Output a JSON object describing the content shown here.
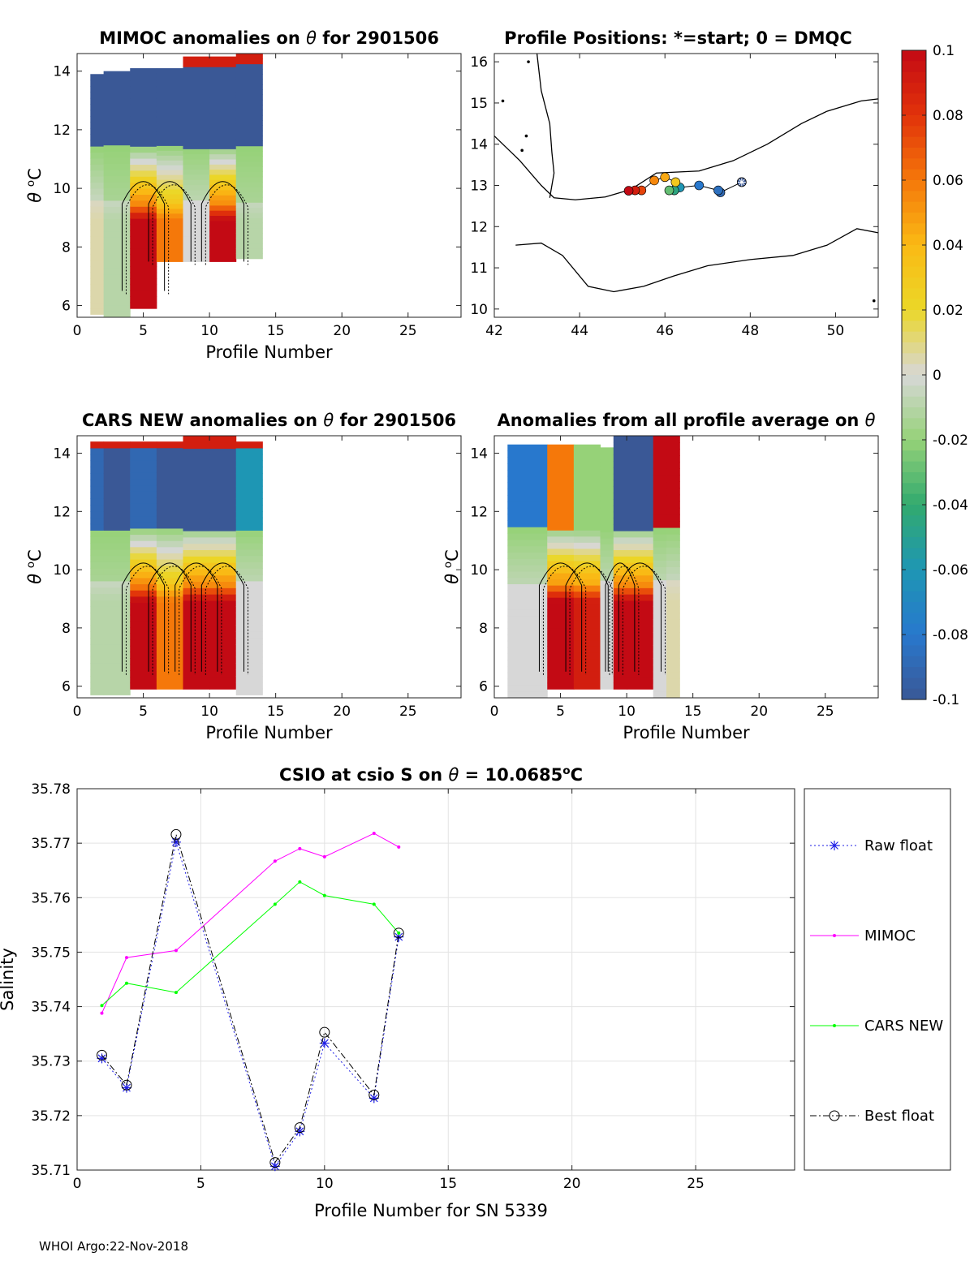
{
  "colors": {
    "raw_float": "#1f1fe6",
    "mimoc": "#ff00ff",
    "cars_new": "#00ff00",
    "best_float": "#000000",
    "deep_blue": "#3a5a9a",
    "grid": "#e3e3e3"
  },
  "colorbar": {
    "ticks": [
      "0.1",
      "0.08",
      "0.06",
      "0.04",
      "0.02",
      "0",
      "-0.02",
      "-0.04",
      "-0.06",
      "-0.08",
      "-0.1"
    ],
    "range": [
      -0.1,
      0.1
    ]
  },
  "footer": "WHOI Argo:22-Nov-2018",
  "chart_data": [
    {
      "id": "mimoc",
      "type": "heatmap",
      "title_parts": [
        "MIMOC anomalies on ",
        "θ",
        "  for 2901506"
      ],
      "xlabel": "Profile Number",
      "ylabel_parts": [
        "θ",
        " ",
        "o",
        "C"
      ],
      "xlim": [
        0,
        29
      ],
      "ylim": [
        5.6,
        14.6
      ],
      "xticks": [
        "0",
        "5",
        "10",
        "15",
        "20",
        "25"
      ],
      "yticks": [
        "6",
        "8",
        "10",
        "12",
        "14"
      ],
      "profiles": [
        1,
        2,
        4,
        5,
        8,
        9,
        10,
        12,
        13
      ],
      "columns": [
        {
          "x0": 1,
          "x1": 2,
          "bottom": 5.7,
          "top": 13.9,
          "deep": -0.1,
          "warm": 0.005
        },
        {
          "x0": 2,
          "x1": 4,
          "bottom": 5.6,
          "top": 14.0,
          "deep": -0.1,
          "warm": -0.01
        },
        {
          "x0": 4,
          "x1": 6,
          "bottom": 5.9,
          "top": 14.1,
          "deep": -0.1,
          "warm": 0.1
        },
        {
          "x0": 6,
          "x1": 8,
          "bottom": 7.5,
          "top": 14.1,
          "deep": -0.1,
          "warm": 0.06
        },
        {
          "x0": 8,
          "x1": 10,
          "bottom": 7.5,
          "top": 14.5,
          "deep": -0.1,
          "warm": 0.0
        },
        {
          "x0": 10,
          "x1": 12,
          "bottom": 7.5,
          "top": 14.5,
          "deep": -0.1,
          "warm": 0.1
        },
        {
          "x0": 12,
          "x1": 14,
          "bottom": 7.6,
          "top": 14.6,
          "deep": -0.1,
          "warm": -0.01
        }
      ]
    },
    {
      "id": "map",
      "type": "scatter",
      "title": "Profile Positions: *=start; 0 = DMQC",
      "xlim": [
        42,
        51
      ],
      "ylim": [
        9.8,
        16.2
      ],
      "xticks": [
        "42",
        "44",
        "46",
        "48",
        "50"
      ],
      "yticks": [
        "10",
        "11",
        "12",
        "13",
        "14",
        "15",
        "16"
      ],
      "track": [
        {
          "lon": 47.8,
          "lat": 13.08,
          "c": -0.1
        },
        {
          "lon": 47.3,
          "lat": 12.83,
          "c": -0.09
        },
        {
          "lon": 47.25,
          "lat": 12.88,
          "c": -0.085
        },
        {
          "lon": 46.8,
          "lat": 13.0,
          "c": -0.08
        },
        {
          "lon": 46.35,
          "lat": 12.95,
          "c": -0.06
        },
        {
          "lon": 46.22,
          "lat": 12.88,
          "c": -0.045
        },
        {
          "lon": 46.1,
          "lat": 12.88,
          "c": -0.03
        },
        {
          "lon": 46.25,
          "lat": 13.08,
          "c": 0.03
        },
        {
          "lon": 46.0,
          "lat": 13.2,
          "c": 0.045
        },
        {
          "lon": 45.75,
          "lat": 13.12,
          "c": 0.055
        },
        {
          "lon": 45.45,
          "lat": 12.88,
          "c": 0.075
        },
        {
          "lon": 45.3,
          "lat": 12.88,
          "c": 0.09
        },
        {
          "lon": 45.15,
          "lat": 12.87,
          "c": 0.1
        }
      ]
    },
    {
      "id": "cars",
      "type": "heatmap",
      "title_parts": [
        "CARS NEW anomalies on ",
        "θ",
        " for 2901506"
      ],
      "xlabel": "Profile Number",
      "ylabel_parts": [
        "θ",
        " ",
        "o",
        "C"
      ],
      "xlim": [
        0,
        29
      ],
      "ylim": [
        5.6,
        14.6
      ],
      "xticks": [
        "0",
        "5",
        "10",
        "15",
        "20",
        "25"
      ],
      "yticks": [
        "6",
        "8",
        "10",
        "12",
        "14"
      ],
      "columns": [
        {
          "x0": 1,
          "x1": 2,
          "bottom": 5.7,
          "top": 14.4,
          "deep": -0.09,
          "warm": -0.01
        },
        {
          "x0": 2,
          "x1": 4,
          "bottom": 5.7,
          "top": 14.4,
          "deep": -0.1,
          "warm": -0.01
        },
        {
          "x0": 4,
          "x1": 6,
          "bottom": 5.9,
          "top": 14.4,
          "deep": -0.09,
          "warm": 0.1
        },
        {
          "x0": 6,
          "x1": 8,
          "bottom": 5.9,
          "top": 14.4,
          "deep": -0.1,
          "warm": 0.06
        },
        {
          "x0": 8,
          "x1": 10,
          "bottom": 5.9,
          "top": 14.6,
          "deep": -0.1,
          "warm": 0.1
        },
        {
          "x0": 10,
          "x1": 12,
          "bottom": 5.9,
          "top": 14.6,
          "deep": -0.1,
          "warm": 0.1
        },
        {
          "x0": 12,
          "x1": 14,
          "bottom": 5.7,
          "top": 14.4,
          "deep": -0.06,
          "warm": 0.0
        }
      ]
    },
    {
      "id": "allavg",
      "type": "heatmap",
      "title_parts": [
        "Anomalies from all profile average on ",
        "θ"
      ],
      "xlabel": "Profile Number",
      "ylabel_parts": [
        "θ",
        " ",
        "o",
        "C"
      ],
      "xlim": [
        0,
        29
      ],
      "ylim": [
        5.6,
        14.6
      ],
      "xticks": [
        "0",
        "5",
        "10",
        "15",
        "20",
        "25",
        ""
      ],
      "yticks": [
        "6",
        "8",
        "10",
        "12",
        "14"
      ],
      "columns": [
        {
          "x0": 1,
          "x1": 4,
          "bottom": 5.6,
          "top": 14.3,
          "deep": -0.08,
          "warm": 0.0
        },
        {
          "x0": 4,
          "x1": 6,
          "bottom": 5.9,
          "top": 14.3,
          "deep": 0.06,
          "warm": 0.1
        },
        {
          "x0": 6,
          "x1": 8,
          "bottom": 5.9,
          "top": 14.3,
          "deep": -0.02,
          "warm": 0.09
        },
        {
          "x0": 8,
          "x1": 9,
          "bottom": 5.9,
          "top": 14.2,
          "deep": -0.02,
          "warm": 0.0
        },
        {
          "x0": 9,
          "x1": 10,
          "bottom": 5.9,
          "top": 14.6,
          "deep": -0.1,
          "warm": 0.1
        },
        {
          "x0": 10,
          "x1": 12,
          "bottom": 5.9,
          "top": 14.6,
          "deep": -0.1,
          "warm": 0.1
        },
        {
          "x0": 12,
          "x1": 13,
          "bottom": 5.6,
          "top": 14.6,
          "deep": 0.1,
          "warm": 0.0
        },
        {
          "x0": 13,
          "x1": 14,
          "bottom": 5.6,
          "top": 14.6,
          "deep": 0.1,
          "warm": 0.005
        }
      ]
    },
    {
      "id": "csio",
      "type": "line",
      "title_parts": [
        "CSIO at csio S on ",
        "θ",
        " = 10.0685",
        "o",
        "C"
      ],
      "xlabel": "Profile Number for SN 5339",
      "ylabel": "Salinity",
      "xlim": [
        0,
        29
      ],
      "ylim": [
        35.71,
        35.78
      ],
      "xticks": [
        "0",
        "5",
        "10",
        "15",
        "20",
        "25"
      ],
      "yticks": [
        "35.71",
        "35.72",
        "35.73",
        "35.74",
        "35.75",
        "35.76",
        "35.77",
        "35.78"
      ],
      "grid": true,
      "legend_position": "right",
      "series": [
        {
          "name": "Raw float",
          "x": [
            1,
            2,
            4,
            8,
            9,
            10,
            12,
            13
          ],
          "y": [
            35.7305,
            35.7251,
            35.7702,
            35.7107,
            35.7171,
            35.7333,
            35.7232,
            35.7528
          ]
        },
        {
          "name": "MIMOC",
          "x": [
            1,
            2,
            4,
            8,
            9,
            10,
            12,
            13
          ],
          "y": [
            35.7388,
            35.749,
            35.7503,
            35.7667,
            35.769,
            35.7675,
            35.7718,
            35.7693
          ]
        },
        {
          "name": "CARS NEW",
          "x": [
            1,
            2,
            4,
            8,
            9,
            10,
            12,
            13
          ],
          "y": [
            35.7402,
            35.7443,
            35.7426,
            35.7588,
            35.7629,
            35.7604,
            35.7588,
            35.7535
          ]
        },
        {
          "name": "Best float",
          "x": [
            1,
            2,
            4,
            8,
            9,
            10,
            12,
            13
          ],
          "y": [
            35.7311,
            35.7256,
            35.7716,
            35.7114,
            35.7178,
            35.7353,
            35.7238,
            35.7535
          ]
        }
      ]
    }
  ]
}
